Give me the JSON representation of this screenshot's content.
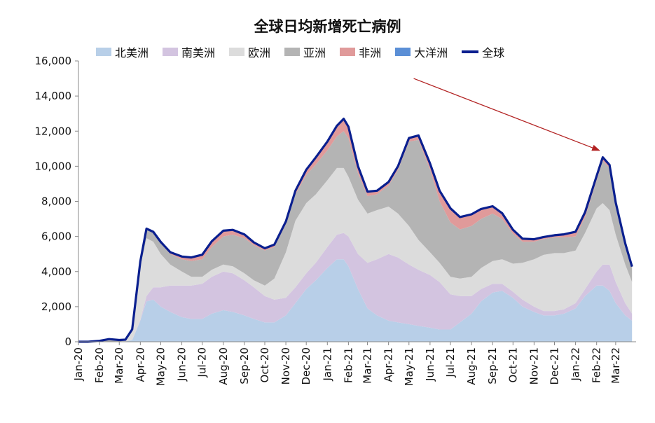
{
  "chart_data": {
    "type": "area",
    "title": "全球日均新增死亡病例",
    "xlabel": "",
    "ylabel": "",
    "ylim": [
      0,
      16000
    ],
    "yticks": [
      0,
      2000,
      4000,
      6000,
      8000,
      10000,
      12000,
      14000,
      16000
    ],
    "ytick_labels": [
      "0",
      "2,000",
      "4,000",
      "6,000",
      "8,000",
      "10,000",
      "12,000",
      "14,000",
      "16,000"
    ],
    "xtick_labels": [
      "Jan-20",
      "Feb-20",
      "Mar-20",
      "Apr-20",
      "May-20",
      "Jun-20",
      "Jul-20",
      "Aug-20",
      "Sep-20",
      "Oct-20",
      "Nov-20",
      "Dec-20",
      "Jan-21",
      "Feb-21",
      "Mar-21",
      "Apr-21",
      "May-21",
      "Jun-21",
      "Jul-21",
      "Aug-21",
      "Sep-21",
      "Oct-21",
      "Nov-21",
      "Dec-21",
      "Jan-22",
      "Feb-22",
      "Mar-22"
    ],
    "x_dates": [
      "2020-01-01",
      "2020-01-15",
      "2020-02-01",
      "2020-02-15",
      "2020-03-01",
      "2020-03-10",
      "2020-03-20",
      "2020-04-01",
      "2020-04-10",
      "2020-04-20",
      "2020-05-01",
      "2020-05-15",
      "2020-06-01",
      "2020-06-15",
      "2020-07-01",
      "2020-07-15",
      "2020-08-01",
      "2020-08-15",
      "2020-09-01",
      "2020-09-15",
      "2020-10-01",
      "2020-10-15",
      "2020-11-01",
      "2020-11-15",
      "2020-12-01",
      "2020-12-15",
      "2021-01-01",
      "2021-01-15",
      "2021-01-25",
      "2021-02-01",
      "2021-02-15",
      "2021-03-01",
      "2021-03-15",
      "2021-04-01",
      "2021-04-15",
      "2021-05-01",
      "2021-05-15",
      "2021-06-01",
      "2021-06-15",
      "2021-07-01",
      "2021-07-15",
      "2021-08-01",
      "2021-08-15",
      "2021-09-01",
      "2021-09-15",
      "2021-10-01",
      "2021-10-15",
      "2021-11-01",
      "2021-11-15",
      "2021-12-01",
      "2021-12-15",
      "2022-01-01",
      "2022-01-15",
      "2022-02-01",
      "2022-02-10",
      "2022-02-20",
      "2022-03-01",
      "2022-03-15",
      "2022-03-25"
    ],
    "series": [
      {
        "name": "北美洲",
        "color": "#b8cfe8",
        "values": [
          0,
          0,
          0,
          0,
          0,
          10,
          100,
          1200,
          2300,
          2400,
          2000,
          1700,
          1400,
          1300,
          1300,
          1600,
          1800,
          1700,
          1500,
          1300,
          1100,
          1100,
          1500,
          2200,
          3000,
          3500,
          4200,
          4700,
          4700,
          4300,
          3000,
          1900,
          1500,
          1200,
          1100,
          1000,
          900,
          800,
          700,
          700,
          1100,
          1600,
          2300,
          2800,
          2900,
          2500,
          2000,
          1700,
          1500,
          1500,
          1600,
          1900,
          2600,
          3200,
          3200,
          2900,
          2200,
          1500,
          1200
        ]
      },
      {
        "name": "南美洲",
        "color": "#d3c4e0",
        "values": [
          0,
          0,
          0,
          0,
          0,
          0,
          10,
          50,
          300,
          700,
          1100,
          1500,
          1800,
          1900,
          2000,
          2100,
          2200,
          2200,
          2000,
          1800,
          1500,
          1300,
          1000,
          900,
          900,
          1000,
          1200,
          1400,
          1500,
          1700,
          2000,
          2600,
          3200,
          3800,
          3700,
          3400,
          3200,
          3000,
          2700,
          2000,
          1500,
          1000,
          700,
          500,
          400,
          350,
          400,
          300,
          250,
          250,
          250,
          300,
          400,
          800,
          1200,
          1500,
          1200,
          700,
          400
        ]
      },
      {
        "name": "欧洲",
        "color": "#dcdcdc",
        "values": [
          0,
          0,
          0,
          0,
          0,
          60,
          500,
          3000,
          3300,
          2600,
          1900,
          1200,
          800,
          500,
          400,
          400,
          400,
          400,
          400,
          400,
          600,
          1200,
          2600,
          3800,
          4000,
          3900,
          3800,
          3800,
          3700,
          3400,
          3100,
          2800,
          2800,
          2700,
          2500,
          2200,
          1700,
          1300,
          1100,
          1000,
          1000,
          1100,
          1200,
          1300,
          1400,
          1600,
          2100,
          2700,
          3200,
          3300,
          3200,
          3000,
          3200,
          3600,
          3500,
          3100,
          2700,
          2200,
          1800
        ]
      },
      {
        "name": "亚洲",
        "color": "#b4b4b4",
        "values": [
          0,
          0,
          50,
          150,
          100,
          50,
          100,
          300,
          500,
          500,
          600,
          600,
          700,
          900,
          1000,
          1300,
          1600,
          1800,
          2000,
          2000,
          2000,
          1800,
          1600,
          1500,
          1600,
          1700,
          1700,
          1800,
          2100,
          2200,
          1500,
          1000,
          900,
          1200,
          2500,
          4800,
          5700,
          4700,
          3500,
          3100,
          2800,
          2900,
          2800,
          2700,
          2300,
          1700,
          1200,
          1000,
          900,
          900,
          900,
          800,
          900,
          1600,
          2400,
          2400,
          1700,
          1100,
          800
        ]
      },
      {
        "name": "非洲",
        "color": "#e09a9a",
        "values": [
          0,
          0,
          0,
          0,
          0,
          0,
          0,
          20,
          40,
          60,
          80,
          100,
          150,
          200,
          250,
          300,
          300,
          250,
          200,
          150,
          120,
          130,
          150,
          200,
          300,
          400,
          500,
          600,
          700,
          650,
          400,
          250,
          200,
          200,
          200,
          200,
          250,
          350,
          600,
          800,
          700,
          650,
          550,
          400,
          300,
          200,
          150,
          120,
          100,
          100,
          150,
          250,
          250,
          200,
          150,
          120,
          90,
          70,
          50
        ]
      },
      {
        "name": "大洋洲",
        "color": "#5b8fd6",
        "values": [
          0,
          0,
          0,
          0,
          0,
          0,
          0,
          5,
          5,
          5,
          5,
          5,
          5,
          5,
          10,
          20,
          30,
          25,
          15,
          10,
          5,
          5,
          5,
          5,
          5,
          5,
          5,
          5,
          5,
          5,
          5,
          5,
          5,
          5,
          5,
          5,
          5,
          5,
          5,
          5,
          5,
          10,
          15,
          20,
          25,
          30,
          25,
          20,
          20,
          20,
          20,
          20,
          30,
          50,
          60,
          60,
          50,
          40,
          30
        ]
      }
    ],
    "total": {
      "name": "全球",
      "color": "#0a1f8f"
    },
    "annotations": [
      {
        "type": "arrow",
        "color": "#b22222",
        "from": [
          "2021-05-08",
          15000
        ],
        "to": [
          "2022-02-05",
          10900
        ]
      }
    ],
    "legend_position": "top",
    "grid": false
  }
}
